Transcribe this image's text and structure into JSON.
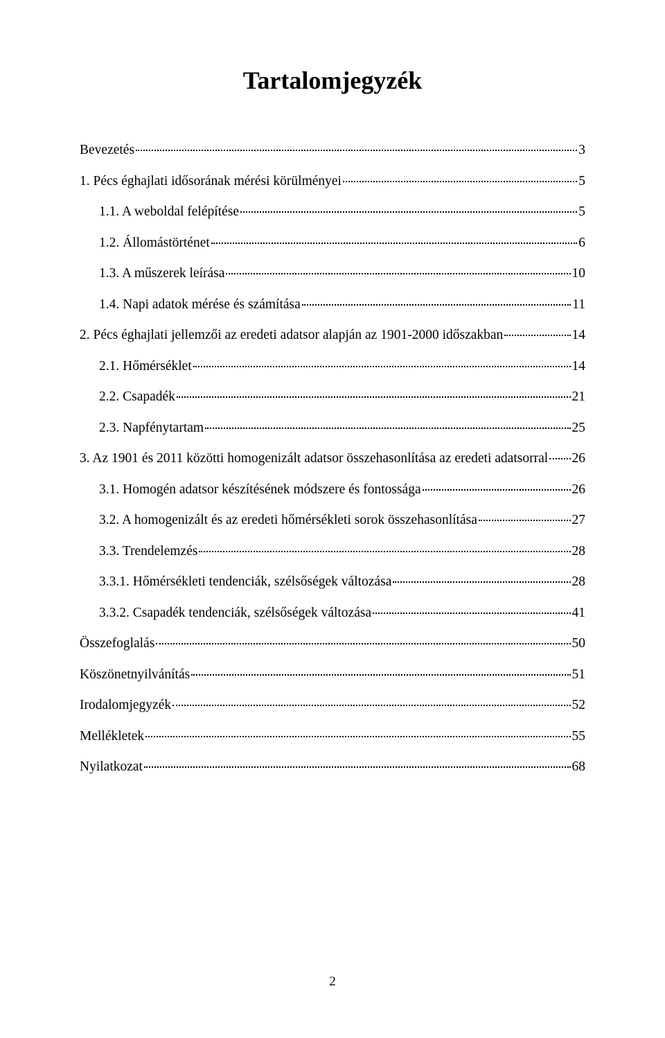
{
  "title": "Tartalomjegyzék",
  "page_number": "2",
  "entries": [
    {
      "level": 0,
      "label": "Bevezetés",
      "page": "3"
    },
    {
      "level": 0,
      "label": "1.  Pécs éghajlati idősorának mérési körülményei",
      "page": "5"
    },
    {
      "level": 1,
      "label": "1.1.  A weboldal felépítése",
      "page": "5"
    },
    {
      "level": 1,
      "label": "1.2.  Állomástörténet",
      "page": "6"
    },
    {
      "level": 1,
      "label": "1.3.  A műszerek leírása",
      "page": "10"
    },
    {
      "level": 1,
      "label": "1.4.  Napi adatok mérése és számítása",
      "page": "11"
    },
    {
      "level": 0,
      "label": "2.  Pécs éghajlati jellemzői az eredeti adatsor alapján az 1901-2000 időszakban",
      "page": "14"
    },
    {
      "level": 1,
      "label": "2.1.  Hőmérséklet",
      "page": "14"
    },
    {
      "level": 1,
      "label": "2.2.  Csapadék",
      "page": "21"
    },
    {
      "level": 1,
      "label": "2.3.  Napfénytartam",
      "page": "25"
    },
    {
      "level": 0,
      "label": "3.  Az 1901 és 2011 közötti homogenizált adatsor összehasonlítása az eredeti adatsorral",
      "page": "26"
    },
    {
      "level": 1,
      "label": "3.1.  Homogén adatsor készítésének módszere és fontossága",
      "page": "26"
    },
    {
      "level": 1,
      "label": "3.2.  A homogenizált és az eredeti hőmérsékleti sorok összehasonlítása",
      "page": "27"
    },
    {
      "level": 1,
      "label": "3.3.  Trendelemzés",
      "page": "28"
    },
    {
      "level": 2,
      "label": "3.3.1.    Hőmérsékleti tendenciák, szélsőségek változása",
      "page": "28"
    },
    {
      "level": 2,
      "label": "3.3.2.    Csapadék tendenciák, szélsőségek változása",
      "page": "41"
    },
    {
      "level": 0,
      "label": "Összefoglalás",
      "page": "50"
    },
    {
      "level": 0,
      "label": "Köszönetnyilvánítás",
      "page": "51"
    },
    {
      "level": 0,
      "label": "Irodalomjegyzék",
      "page": "52"
    },
    {
      "level": 0,
      "label": "Mellékletek",
      "page": "55"
    },
    {
      "level": 0,
      "label": "Nyilatkozat",
      "page": "68"
    }
  ]
}
